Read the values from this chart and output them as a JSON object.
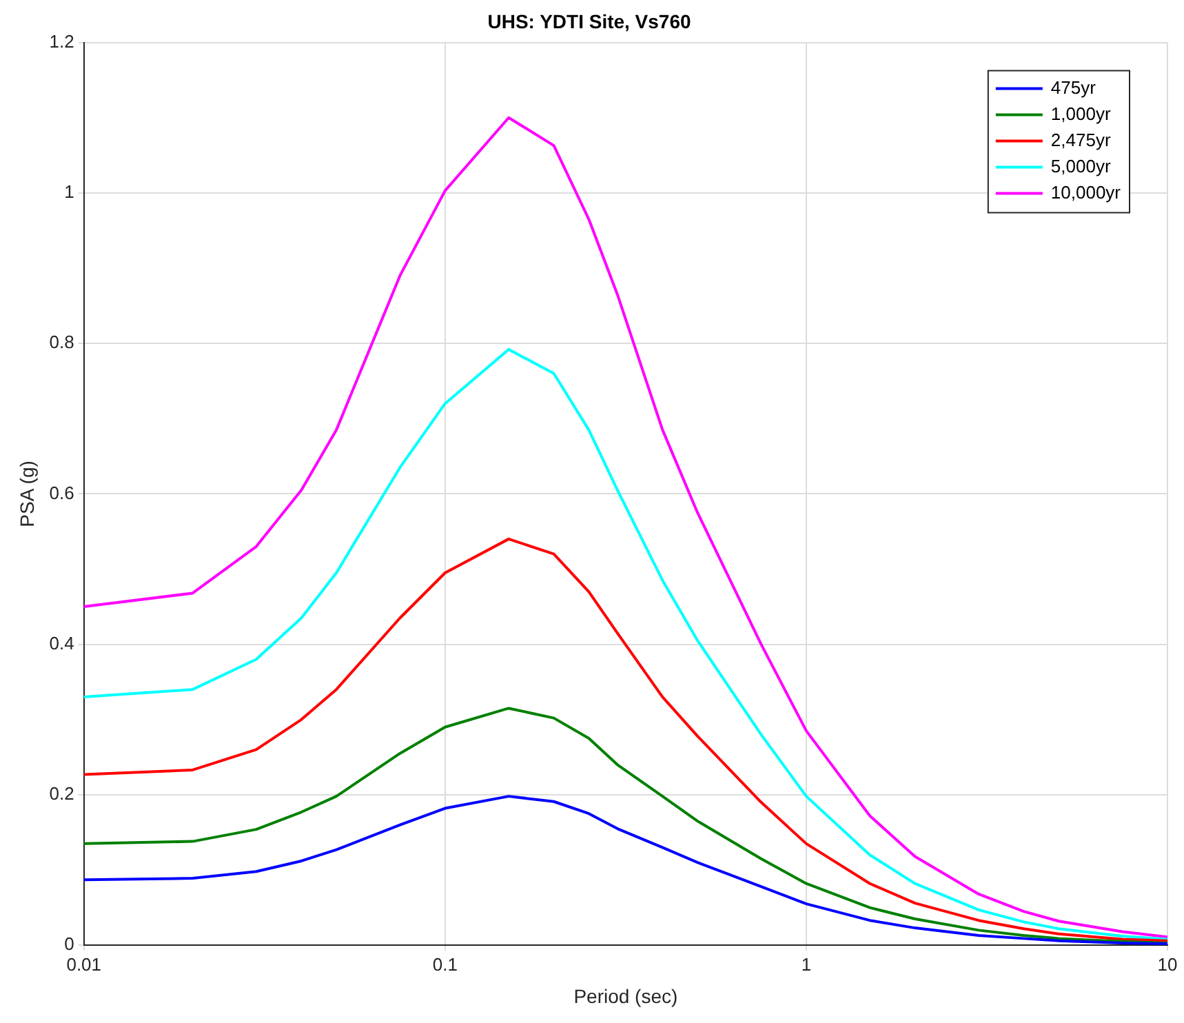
{
  "chart_data": {
    "type": "line",
    "title": "UHS: YDTI Site, Vs760",
    "xlabel": "Period (sec)",
    "ylabel": "PSA (g)",
    "log": "x",
    "grid": true,
    "legend": "top right",
    "marker": "none",
    "line_style": "solid",
    "x": [
      0.01,
      0.02,
      0.03,
      0.04,
      0.05,
      0.075,
      0.1,
      0.15,
      0.2,
      0.25,
      0.3,
      0.4,
      0.5,
      0.75,
      1,
      1.5,
      2,
      3,
      4,
      5,
      7.5,
      10
    ],
    "xlim": [
      0.01,
      10
    ],
    "xticks": [
      0.01,
      0.1,
      1,
      10
    ],
    "ylim": [
      0,
      1.2
    ],
    "yticks": [
      0,
      0.2,
      0.4,
      0.6,
      0.8,
      1,
      1.2
    ],
    "series": [
      {
        "name": "475yr",
        "color": "#0000ff",
        "values": [
          0.087,
          0.089,
          0.098,
          0.112,
          0.127,
          0.16,
          0.182,
          0.198,
          0.191,
          0.175,
          0.155,
          0.13,
          0.11,
          0.078,
          0.055,
          0.033,
          0.023,
          0.013,
          0.009,
          0.006,
          0.003,
          0.002
        ]
      },
      {
        "name": "1,000yr",
        "color": "#008000",
        "values": [
          0.135,
          0.138,
          0.154,
          0.177,
          0.198,
          0.255,
          0.29,
          0.315,
          0.302,
          0.275,
          0.24,
          0.198,
          0.165,
          0.115,
          0.082,
          0.05,
          0.035,
          0.02,
          0.013,
          0.009,
          0.005,
          0.003
        ]
      },
      {
        "name": "2,475yr",
        "color": "#ff0000",
        "values": [
          0.227,
          0.233,
          0.26,
          0.3,
          0.34,
          0.435,
          0.495,
          0.54,
          0.52,
          0.47,
          0.415,
          0.33,
          0.278,
          0.19,
          0.135,
          0.082,
          0.056,
          0.033,
          0.022,
          0.015,
          0.008,
          0.006
        ]
      },
      {
        "name": "5,000yr",
        "color": "#00ffff",
        "values": [
          0.33,
          0.34,
          0.38,
          0.435,
          0.495,
          0.635,
          0.72,
          0.792,
          0.76,
          0.685,
          0.605,
          0.485,
          0.405,
          0.28,
          0.198,
          0.12,
          0.082,
          0.047,
          0.031,
          0.022,
          0.012,
          0.008
        ]
      },
      {
        "name": "10,000yr",
        "color": "#ff00ff",
        "values": [
          0.45,
          0.468,
          0.53,
          0.605,
          0.685,
          0.89,
          1.003,
          1.1,
          1.063,
          0.965,
          0.865,
          0.685,
          0.575,
          0.4,
          0.285,
          0.172,
          0.118,
          0.068,
          0.045,
          0.032,
          0.018,
          0.011
        ]
      }
    ]
  }
}
